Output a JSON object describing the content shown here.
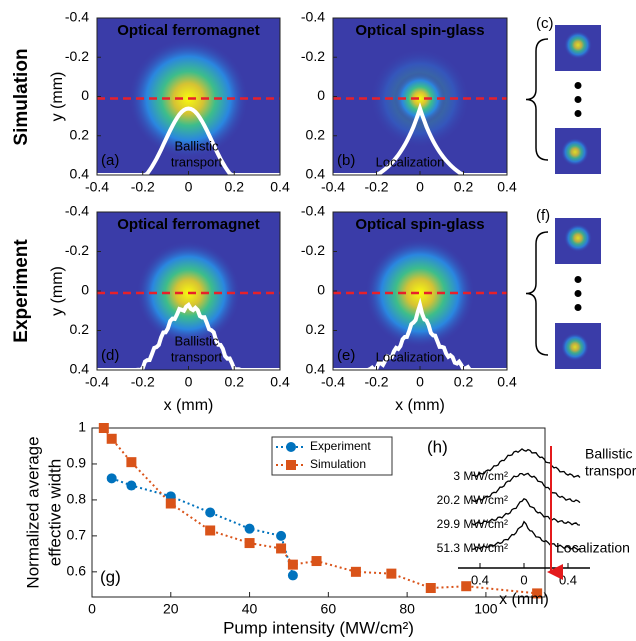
{
  "row_labels": [
    "Simulation",
    "Experiment"
  ],
  "chart_data": [
    {
      "type": "image",
      "label": "(a)",
      "title": "Optical ferromagnet",
      "annotation": [
        "Ballistic",
        "transport"
      ],
      "xlim": [
        -0.4,
        0.4
      ],
      "ylim": [
        -0.4,
        0.4
      ],
      "y_inverted": true,
      "xticks": [
        -0.4,
        -0.2,
        0,
        0.2,
        0.4
      ],
      "yticks": [
        -0.4,
        -0.2,
        0,
        0.2,
        0.4
      ],
      "ylabel": "y (mm)"
    },
    {
      "type": "image",
      "label": "(b)",
      "title": "Optical spin-glass",
      "annotation": [
        "Localization"
      ],
      "xlim": [
        -0.4,
        0.4
      ],
      "ylim": [
        -0.4,
        0.4
      ],
      "y_inverted": true,
      "xticks": [
        -0.4,
        -0.2,
        0,
        0.2,
        0.4
      ],
      "yticks": [
        -0.4,
        -0.2,
        0,
        0.2,
        0.4
      ]
    },
    {
      "type": "image",
      "label": "(d)",
      "title": "Optical ferromagnet",
      "annotation": [
        "Ballistic",
        "transport"
      ],
      "xlim": [
        -0.4,
        0.4
      ],
      "ylim": [
        -0.4,
        0.4
      ],
      "y_inverted": true,
      "xticks": [
        -0.4,
        -0.2,
        0,
        0.2,
        0.4
      ],
      "yticks": [
        -0.4,
        -0.2,
        0,
        0.2,
        0.4
      ],
      "xlabel": "x (mm)",
      "ylabel": "y (mm)"
    },
    {
      "type": "image",
      "label": "(e)",
      "title": "Optical spin-glass",
      "annotation": [
        "Localization"
      ],
      "xlim": [
        -0.4,
        0.4
      ],
      "ylim": [
        -0.4,
        0.4
      ],
      "y_inverted": true,
      "xticks": [
        -0.4,
        -0.2,
        0,
        0.2,
        0.4
      ],
      "yticks": [
        -0.4,
        -0.2,
        0,
        0.2,
        0.4
      ],
      "xlabel": "x (mm)"
    },
    {
      "type": "montage",
      "label": "(c)"
    },
    {
      "type": "montage",
      "label": "(f)"
    },
    {
      "type": "line",
      "label": "(g)",
      "xlabel": "Pump intensity (MW/cm²)",
      "ylabel": [
        "Normalized average",
        "effective width"
      ],
      "xlim": [
        0,
        115
      ],
      "ylim": [
        0.53,
        1.0
      ],
      "xticks": [
        0,
        20,
        40,
        60,
        80,
        100
      ],
      "yticks": [
        0.6,
        0.7,
        0.8,
        0.9,
        1
      ],
      "legend": "upper-right",
      "series": [
        {
          "name": "Experiment",
          "color": "#0072bd",
          "marker": "circle",
          "x": [
            5,
            10,
            20,
            30,
            40,
            48,
            51
          ],
          "values": [
            0.86,
            0.84,
            0.81,
            0.765,
            0.72,
            0.7,
            0.59
          ]
        },
        {
          "name": "Simulation",
          "color": "#d95319",
          "marker": "square",
          "x": [
            3,
            5,
            10,
            20,
            30,
            40,
            48,
            51,
            57,
            67,
            76,
            86,
            95,
            113
          ],
          "values": [
            1.0,
            0.97,
            0.905,
            0.79,
            0.715,
            0.68,
            0.665,
            0.62,
            0.63,
            0.6,
            0.595,
            0.555,
            0.56,
            0.54
          ]
        }
      ]
    },
    {
      "type": "profile",
      "label": "(h)",
      "xlabel": "x (mm)",
      "xlim": [
        -0.6,
        0.6
      ],
      "xticks": [
        {
          "value": -0.4,
          "label": "0.4"
        },
        0,
        0.4
      ],
      "profiles": [
        "3 MW/cm²",
        "20.2 MW/cm²",
        "29.9 MW/cm²",
        "51.3 MW/cm²"
      ],
      "top_annotation": [
        "Ballistic",
        "transport"
      ],
      "bottom_annotation": "Localization"
    }
  ]
}
